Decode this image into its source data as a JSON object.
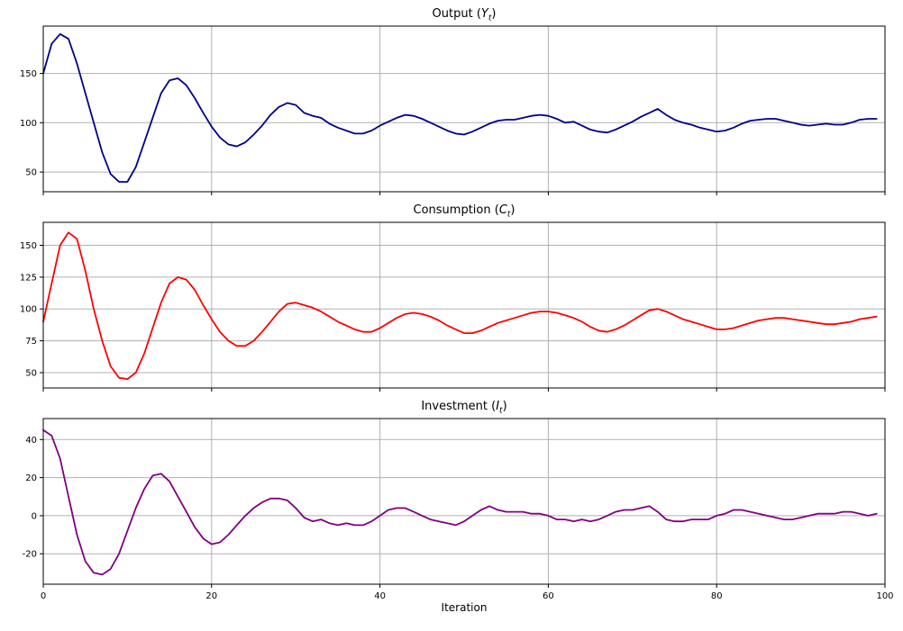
{
  "chart_data": {
    "type": "line",
    "layout": "3 stacked subplots sharing one x axis, grid on, no legend",
    "xlabel": "Iteration",
    "xlim": [
      0,
      100
    ],
    "xticks": [
      0,
      20,
      40,
      60,
      80,
      100
    ],
    "x_start": 0,
    "x_step": 1,
    "n_points": 100,
    "grid": true,
    "grid_color": "#b0b0b0",
    "axis_color": "#000000",
    "background": "#ffffff",
    "subplots": [
      {
        "title_plain": "Output (Y_t)",
        "title_parts": {
          "pre": "Output (",
          "sym": "Y",
          "sub": "t",
          "post": ")"
        },
        "line_color": "#00008b",
        "ylim": [
          30,
          198
        ],
        "yticks": [
          50,
          100,
          150
        ],
        "values": [
          150,
          180,
          190,
          185,
          160,
          130,
          100,
          70,
          48,
          40,
          40,
          55,
          80,
          105,
          130,
          143,
          145,
          138,
          125,
          110,
          96,
          85,
          78,
          76,
          80,
          88,
          97,
          108,
          116,
          120,
          118,
          110,
          107,
          105,
          99,
          95,
          92,
          89,
          89,
          92,
          97,
          101,
          105,
          108,
          107,
          104,
          100,
          96,
          92,
          89,
          88,
          91,
          95,
          99,
          102,
          103,
          103,
          105,
          107,
          108,
          107,
          104,
          100,
          101,
          97,
          93,
          91,
          90,
          93,
          97,
          101,
          106,
          110,
          114,
          108,
          103,
          100,
          98,
          95,
          93,
          91,
          92,
          95,
          99,
          102,
          103,
          104,
          104,
          102,
          100,
          98,
          97,
          98,
          99,
          98,
          98,
          100,
          103,
          104,
          104
        ]
      },
      {
        "title_plain": "Consumption (C_t)",
        "title_parts": {
          "pre": "Consumption (",
          "sym": "C",
          "sub": "t",
          "post": ")"
        },
        "line_color": "#ff0000",
        "ylim": [
          38,
          168
        ],
        "yticks": [
          50,
          75,
          100,
          125,
          150
        ],
        "values": [
          90,
          120,
          150,
          160,
          155,
          130,
          100,
          75,
          55,
          46,
          45,
          50,
          65,
          85,
          105,
          120,
          125,
          123,
          115,
          103,
          92,
          82,
          75,
          71,
          71,
          75,
          82,
          90,
          98,
          104,
          105,
          103,
          101,
          98,
          94,
          90,
          87,
          84,
          82,
          82,
          85,
          89,
          93,
          96,
          97,
          96,
          94,
          91,
          87,
          84,
          81,
          81,
          83,
          86,
          89,
          91,
          93,
          95,
          97,
          98,
          98,
          97,
          95,
          93,
          90,
          86,
          83,
          82,
          84,
          87,
          91,
          95,
          99,
          100,
          98,
          95,
          92,
          90,
          88,
          86,
          84,
          84,
          85,
          87,
          89,
          91,
          92,
          93,
          93,
          92,
          91,
          90,
          89,
          88,
          88,
          89,
          90,
          92,
          93,
          94
        ]
      },
      {
        "title_plain": "Investment (I_t)",
        "title_parts": {
          "pre": "Investment (",
          "sym": "I",
          "sub": "t",
          "post": ")"
        },
        "line_color": "#800080",
        "ylim": [
          -36,
          51
        ],
        "yticks": [
          -20,
          0,
          20,
          40
        ],
        "values": [
          45,
          42,
          30,
          10,
          -10,
          -24,
          -30,
          -31,
          -28,
          -20,
          -8,
          4,
          14,
          21,
          22,
          18,
          10,
          2,
          -6,
          -12,
          -15,
          -14,
          -10,
          -5,
          0,
          4,
          7,
          9,
          9,
          8,
          4,
          -1,
          -3,
          -2,
          -4,
          -5,
          -4,
          -5,
          -5,
          -3,
          0,
          3,
          4,
          4,
          2,
          0,
          -2,
          -3,
          -4,
          -5,
          -3,
          0,
          3,
          5,
          3,
          2,
          2,
          2,
          1,
          1,
          0,
          -2,
          -2,
          -3,
          -2,
          -3,
          -2,
          0,
          2,
          3,
          3,
          4,
          5,
          2,
          -2,
          -3,
          -3,
          -2,
          -2,
          -2,
          0,
          1,
          3,
          3,
          2,
          1,
          0,
          -1,
          -2,
          -2,
          -1,
          0,
          1,
          1,
          1,
          2,
          2,
          1,
          0,
          1
        ]
      }
    ]
  }
}
